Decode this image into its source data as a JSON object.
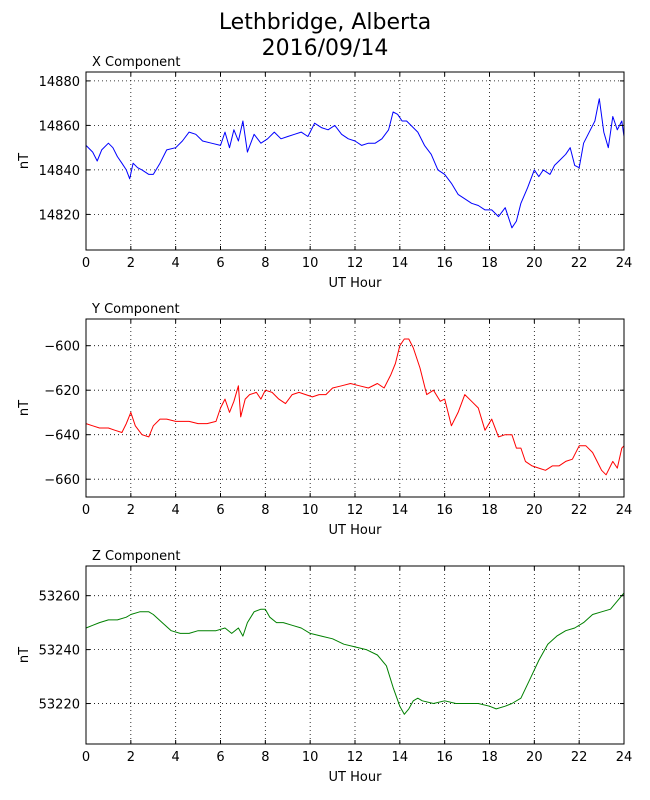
{
  "figure": {
    "title_line1": "Lethbridge, Alberta",
    "title_line2": "2016/09/14"
  },
  "chart_data": [
    {
      "type": "line",
      "title": "X Component",
      "xlabel": "UT Hour",
      "ylabel": "nT",
      "color": "#0000ff",
      "xlim": [
        0,
        24
      ],
      "ylim": [
        14804,
        14884
      ],
      "xticks": [
        0,
        2,
        4,
        6,
        8,
        10,
        12,
        14,
        16,
        18,
        20,
        22,
        24
      ],
      "yticks": [
        14820,
        14840,
        14860,
        14880
      ],
      "grid": true,
      "series": [
        {
          "x": [
            0,
            0.3,
            0.5,
            0.7,
            1.0,
            1.2,
            1.4,
            1.6,
            1.8,
            1.95,
            2.1,
            2.3,
            2.5,
            2.8,
            3.0,
            3.3,
            3.6,
            4.0,
            4.3,
            4.6,
            4.9,
            5.2,
            5.6,
            6.0,
            6.2,
            6.4,
            6.6,
            6.8,
            7.0,
            7.2,
            7.5,
            7.8,
            8.1,
            8.4,
            8.7,
            9.0,
            9.3,
            9.6,
            9.9,
            10.2,
            10.5,
            10.8,
            11.1,
            11.4,
            11.7,
            12.0,
            12.3,
            12.6,
            12.9,
            13.2,
            13.5,
            13.7,
            13.9,
            14.1,
            14.3,
            14.5,
            14.8,
            15.1,
            15.4,
            15.7,
            16.0,
            16.3,
            16.6,
            16.9,
            17.2,
            17.5,
            17.8,
            18.1,
            18.4,
            18.7,
            19.0,
            19.2,
            19.4,
            19.7,
            20.0,
            20.2,
            20.4,
            20.7,
            20.9,
            21.1,
            21.4,
            21.6,
            21.8,
            22.0,
            22.2,
            22.5,
            22.7,
            22.9,
            23.1,
            23.3,
            23.5,
            23.7,
            23.9,
            24.0
          ],
          "y": [
            14851,
            14848,
            14844,
            14849,
            14852,
            14850,
            14846,
            14843,
            14840,
            14836,
            14843,
            14841,
            14840,
            14838,
            14838,
            14843,
            14849,
            14850,
            14853,
            14857,
            14856,
            14853,
            14852,
            14851,
            14857,
            14850,
            14858,
            14853,
            14862,
            14848,
            14856,
            14852,
            14854,
            14857,
            14854,
            14855,
            14856,
            14857,
            14855,
            14861,
            14859,
            14858,
            14860,
            14856,
            14854,
            14853,
            14851,
            14852,
            14852,
            14854,
            14858,
            14866,
            14865,
            14862,
            14862,
            14860,
            14857,
            14851,
            14847,
            14840,
            14838,
            14834,
            14829,
            14827,
            14825,
            14824,
            14822,
            14822,
            14819,
            14823,
            14814,
            14817,
            14825,
            14832,
            14840,
            14837,
            14840,
            14838,
            14842,
            14844,
            14847,
            14850,
            14842,
            14841,
            14852,
            14858,
            14862,
            14872,
            14857,
            14850,
            14864,
            14858,
            14862,
            14855
          ]
        }
      ]
    },
    {
      "type": "line",
      "title": "Y Component",
      "xlabel": "UT Hour",
      "ylabel": "nT",
      "color": "#ff0000",
      "xlim": [
        0,
        24
      ],
      "ylim": [
        -668,
        -588
      ],
      "xticks": [
        0,
        2,
        4,
        6,
        8,
        10,
        12,
        14,
        16,
        18,
        20,
        22,
        24
      ],
      "yticks": [
        -600,
        -620,
        -640,
        -660
      ],
      "grid": true,
      "series": [
        {
          "x": [
            0,
            0.3,
            0.6,
            1.0,
            1.3,
            1.6,
            1.8,
            2.0,
            2.2,
            2.5,
            2.8,
            3.0,
            3.3,
            3.6,
            4.0,
            4.3,
            4.6,
            5.0,
            5.4,
            5.8,
            6.0,
            6.2,
            6.4,
            6.6,
            6.8,
            6.9,
            7.1,
            7.3,
            7.6,
            7.8,
            8.0,
            8.3,
            8.6,
            8.9,
            9.2,
            9.5,
            9.8,
            10.1,
            10.4,
            10.7,
            11.0,
            11.4,
            11.8,
            12.2,
            12.6,
            13.0,
            13.3,
            13.6,
            13.8,
            14.0,
            14.2,
            14.4,
            14.6,
            14.9,
            15.2,
            15.5,
            15.8,
            16.0,
            16.3,
            16.6,
            16.9,
            17.2,
            17.5,
            17.8,
            18.1,
            18.4,
            18.7,
            19.0,
            19.2,
            19.4,
            19.6,
            19.9,
            20.2,
            20.5,
            20.8,
            21.1,
            21.4,
            21.7,
            22.0,
            22.3,
            22.6,
            22.8,
            23.0,
            23.2,
            23.5,
            23.7,
            23.9,
            24.0
          ],
          "y": [
            -635,
            -636,
            -637,
            -637,
            -638,
            -639,
            -635,
            -630,
            -636,
            -640,
            -641,
            -636,
            -633,
            -633,
            -634,
            -634,
            -634,
            -635,
            -635,
            -634,
            -628,
            -624,
            -630,
            -625,
            -618,
            -632,
            -624,
            -622,
            -621,
            -624,
            -620,
            -621,
            -624,
            -626,
            -622,
            -621,
            -622,
            -623,
            -622,
            -622,
            -619,
            -618,
            -617,
            -618,
            -619,
            -617,
            -619,
            -613,
            -608,
            -600,
            -597,
            -597,
            -601,
            -610,
            -622,
            -620,
            -625,
            -624,
            -636,
            -630,
            -622,
            -625,
            -628,
            -638,
            -633,
            -641,
            -640,
            -640,
            -646,
            -646,
            -652,
            -654,
            -655,
            -656,
            -654,
            -654,
            -652,
            -651,
            -645,
            -645,
            -648,
            -652,
            -656,
            -658,
            -652,
            -655,
            -646,
            -645
          ]
        }
      ]
    },
    {
      "type": "line",
      "title": "Z Component",
      "xlabel": "UT Hour",
      "ylabel": "nT",
      "color": "#008000",
      "xlim": [
        0,
        24
      ],
      "ylim": [
        53205,
        53271
      ],
      "xticks": [
        0,
        2,
        4,
        6,
        8,
        10,
        12,
        14,
        16,
        18,
        20,
        22,
        24
      ],
      "yticks": [
        53220,
        53240,
        53260
      ],
      "grid": true,
      "series": [
        {
          "x": [
            0,
            0.3,
            0.6,
            1.0,
            1.4,
            1.8,
            2.0,
            2.4,
            2.8,
            3.0,
            3.4,
            3.8,
            4.2,
            4.6,
            5.0,
            5.4,
            5.8,
            6.2,
            6.5,
            6.8,
            7.0,
            7.2,
            7.5,
            7.8,
            8.0,
            8.2,
            8.5,
            8.8,
            9.2,
            9.6,
            10.0,
            10.5,
            11.0,
            11.5,
            12.0,
            12.5,
            13.0,
            13.4,
            13.7,
            14.0,
            14.2,
            14.4,
            14.6,
            14.8,
            15.0,
            15.5,
            16.0,
            16.5,
            17.0,
            17.5,
            18.0,
            18.3,
            18.7,
            19.0,
            19.4,
            19.8,
            20.2,
            20.6,
            21.0,
            21.4,
            21.8,
            22.2,
            22.6,
            23.0,
            23.4,
            23.7,
            24.0
          ],
          "y": [
            53248,
            53249,
            53250,
            53251,
            53251,
            53252,
            53253,
            53254,
            53254,
            53253,
            53250,
            53247,
            53246,
            53246,
            53247,
            53247,
            53247,
            53248,
            53246,
            53248,
            53245,
            53250,
            53254,
            53255,
            53255,
            53252,
            53250,
            53250,
            53249,
            53248,
            53246,
            53245,
            53244,
            53242,
            53241,
            53240,
            53238,
            53234,
            53226,
            53219,
            53216,
            53218,
            53221,
            53222,
            53221,
            53220,
            53221,
            53220,
            53220,
            53220,
            53219,
            53218,
            53219,
            53220,
            53222,
            53229,
            53236,
            53242,
            53245,
            53247,
            53248,
            53250,
            53253,
            53254,
            53255,
            53258,
            53261
          ]
        }
      ]
    }
  ]
}
